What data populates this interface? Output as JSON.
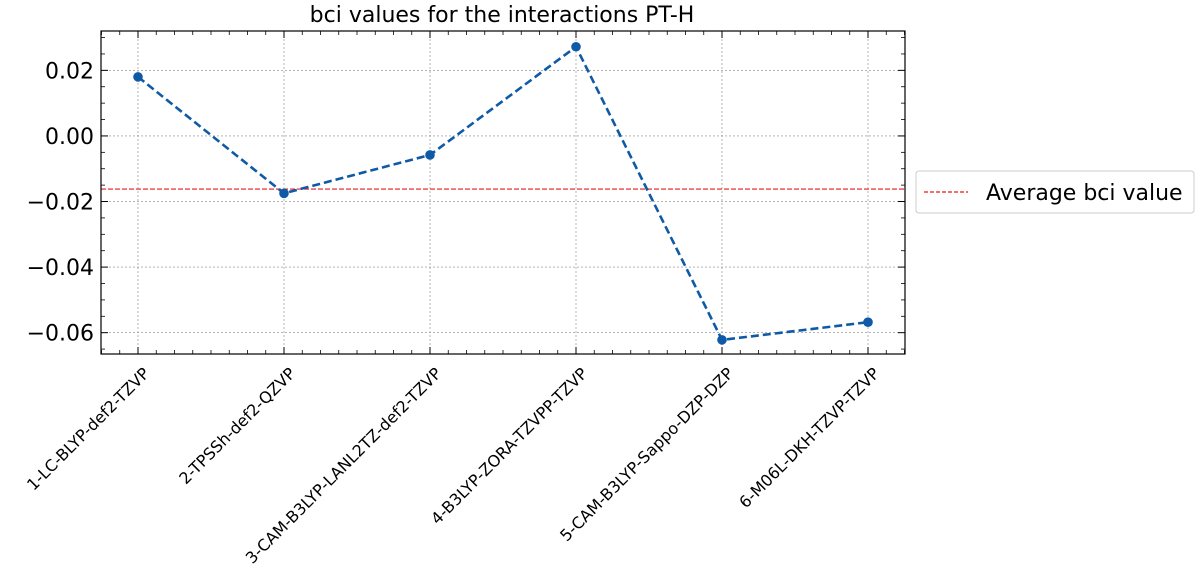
{
  "chart_data": {
    "type": "line",
    "title": "bci values for the interactions PT-H",
    "xlabel": "",
    "ylabel": "",
    "categories": [
      "1-LC-BLYP-def2-TZVP",
      "2-TPSSh-def2-QZVP",
      "3-CAM-B3LYP-LANL2TZ-def2-TZVP",
      "4-B3LYP-ZORA-TZVPP-TZVP",
      "5-CAM-B3LYP-Sappo-DZP-DZP",
      "6-M06L-DKH-TZVP-TZVP"
    ],
    "series": [
      {
        "values": [
          0.018,
          -0.0175,
          -0.0058,
          0.0272,
          -0.0622,
          -0.0568
        ],
        "color": "#0f5aa6",
        "style": "dashed",
        "marker": "circle"
      }
    ],
    "reference_lines": [
      {
        "name": "Average bci value",
        "value": -0.0162,
        "color": "#e41a1c",
        "style": "dashed"
      }
    ],
    "yticks": [
      "0.02",
      "0.00",
      "−0.02",
      "−0.04",
      "−0.06"
    ],
    "ytick_values": [
      0.02,
      0.0,
      -0.02,
      -0.04,
      -0.06
    ],
    "ylim": [
      -0.0665,
      0.032
    ],
    "grid": true,
    "legend_position": "outside-right",
    "legend_entries": [
      "Average bci value"
    ]
  }
}
